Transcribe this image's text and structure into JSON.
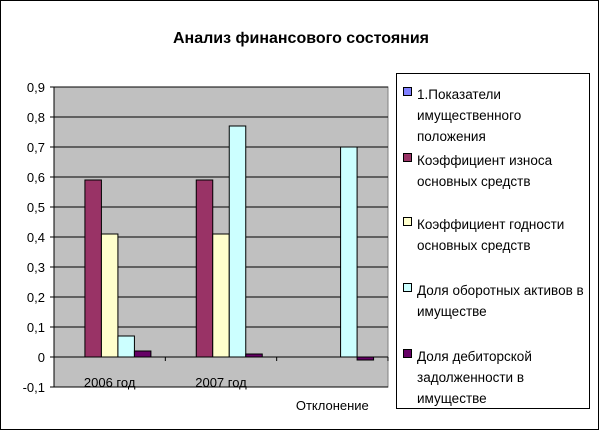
{
  "chart_data": {
    "type": "bar",
    "title": "Анализ финансового состояния",
    "categories": [
      "2006 год",
      "2007 год",
      "Отклонение"
    ],
    "series": [
      {
        "name": "1.Показатели имущественного положения",
        "color": "#8080ff",
        "values": [
          0,
          0,
          0
        ]
      },
      {
        "name": "Коэффициент износа основных средств",
        "color": "#993366",
        "values": [
          0.59,
          0.59,
          0
        ]
      },
      {
        "name": "Коэффициент годности основных средств",
        "color": "#ffffcc",
        "values": [
          0.41,
          0.41,
          0
        ]
      },
      {
        "name": "Доля оборотных активов в имуществе",
        "color": "#ccffff",
        "values": [
          0.07,
          0.77,
          0.7
        ]
      },
      {
        "name": "Доля дебиторской задолженности в имуществе",
        "color": "#660066",
        "values": [
          0.02,
          0.01,
          -0.01
        ]
      }
    ],
    "yticks": [
      "0,9",
      "0,8",
      "0,7",
      "0,6",
      "0,5",
      "0,4",
      "0,3",
      "0,2",
      "0,1",
      "0",
      "-0,1"
    ],
    "ylim": [
      -0.1,
      0.9
    ],
    "plot_background": "#c0c0c0",
    "grid": true,
    "legend_position": "right"
  }
}
